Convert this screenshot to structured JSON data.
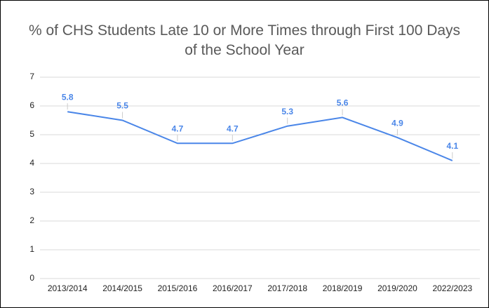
{
  "chart_data": {
    "type": "line",
    "title": "% of CHS Students Late 10 or More Times through First 100 Days of the School Year",
    "categories": [
      "2013/2014",
      "2014/2015",
      "2015/2016",
      "2016/2017",
      "2017/2018",
      "2018/2019",
      "2019/2020",
      "2022/2023"
    ],
    "series": [
      {
        "name": "% of CHS Students Late 10 or More Times",
        "color": "#4a86e8",
        "values": [
          5.8,
          5.5,
          4.7,
          4.7,
          5.3,
          5.6,
          4.9,
          4.1
        ]
      }
    ],
    "ylim": [
      0,
      7
    ],
    "yticks": [
      0,
      1,
      2,
      3,
      4,
      5,
      6,
      7
    ],
    "grid": true,
    "data_labels": true
  }
}
